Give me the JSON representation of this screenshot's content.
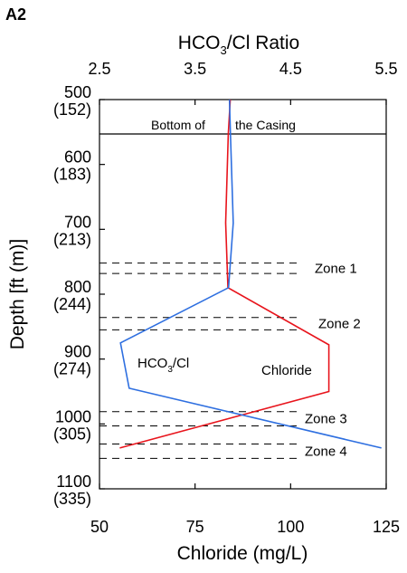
{
  "chart_data": {
    "type": "line",
    "panel_label": "A2",
    "x_bottom": {
      "label": "Chloride (mg/L)",
      "range": [
        50,
        125
      ],
      "ticks": [
        50,
        75,
        100,
        125
      ],
      "tick_labels": [
        "50",
        "75",
        "100",
        "125"
      ]
    },
    "x_top": {
      "label": "HCO3/Cl Ratio",
      "label_main": "HCO",
      "label_sub": "3",
      "label_tail": "/Cl Ratio",
      "range": [
        2.5,
        5.5
      ],
      "ticks": [
        2.5,
        3.5,
        4.5,
        5.5
      ],
      "tick_labels": [
        "2.5",
        "3.5",
        "4.5",
        "5.5"
      ]
    },
    "y": {
      "label": "Depth [ft (m)]",
      "range": [
        500,
        1100
      ],
      "inverted": true,
      "ticks": [
        500,
        600,
        700,
        800,
        900,
        1000,
        1100
      ],
      "tick_labels_ft": [
        "500",
        "600",
        "700",
        "800",
        "900",
        "1000",
        "1100"
      ],
      "tick_labels_m": [
        "(152)",
        "(183)",
        "(213)",
        "(244)",
        "(274)",
        "(305)",
        "(335)"
      ]
    },
    "grid": false,
    "casing": {
      "depth": 553,
      "label_left": "Bottom of",
      "label_right": "the Casing"
    },
    "zones": [
      {
        "name": "Zone 1",
        "top": 752,
        "bottom": 768
      },
      {
        "name": "Zone 2",
        "top": 836,
        "bottom": 855
      },
      {
        "name": "Zone 3",
        "top": 981,
        "bottom": 1003
      },
      {
        "name": "Zone 4",
        "top": 1031,
        "bottom": 1053
      }
    ],
    "series": [
      {
        "name": "Chloride",
        "axis": "bottom",
        "color": "#e8141c",
        "points": [
          {
            "x": 84.2,
            "depth": 500
          },
          {
            "x": 83.7,
            "depth": 553
          },
          {
            "x": 83.0,
            "depth": 690
          },
          {
            "x": 83.6,
            "depth": 790
          },
          {
            "x": 110.0,
            "depth": 878
          },
          {
            "x": 110.0,
            "depth": 950
          },
          {
            "x": 55.3,
            "depth": 1037
          }
        ]
      },
      {
        "name": "HCO3/Cl",
        "label_main": "HCO",
        "label_sub": "3",
        "label_tail": "/Cl",
        "axis": "top",
        "color": "#2e6fe0",
        "points": [
          {
            "x": 3.86,
            "depth": 500
          },
          {
            "x": 3.87,
            "depth": 553
          },
          {
            "x": 3.9,
            "depth": 690
          },
          {
            "x": 3.85,
            "depth": 790
          },
          {
            "x": 2.72,
            "depth": 875
          },
          {
            "x": 2.81,
            "depth": 945
          },
          {
            "x": 5.45,
            "depth": 1037
          }
        ]
      }
    ]
  }
}
